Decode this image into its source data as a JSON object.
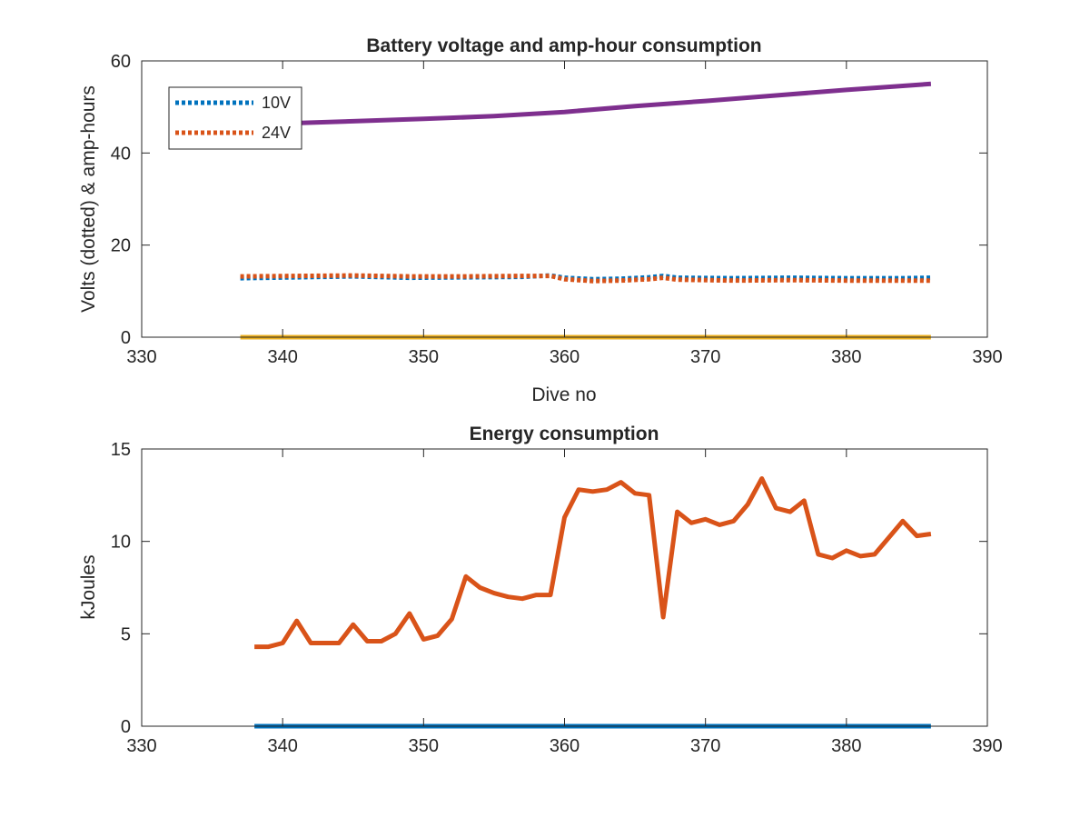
{
  "chart_data": [
    {
      "type": "line",
      "title": "Battery voltage and amp-hour consumption",
      "xlabel": "Dive no",
      "ylabel": "Volts (dotted) & amp-hours",
      "xlim": [
        330,
        390
      ],
      "ylim": [
        0,
        60
      ],
      "xticks": [
        "330",
        "340",
        "350",
        "360",
        "370",
        "380",
        "390"
      ],
      "yticks": [
        "0",
        "20",
        "40",
        "60"
      ],
      "legend_position": "top-left",
      "grid": false,
      "series": [
        {
          "name": "10V",
          "style": "dotted",
          "color": "#0072BD",
          "x": [
            337,
            341,
            345,
            349,
            353,
            357,
            359,
            360,
            362,
            364,
            366,
            367,
            368,
            372,
            376,
            380,
            384,
            386
          ],
          "y": [
            12.8,
            13.0,
            13.2,
            12.9,
            13.0,
            13.1,
            13.4,
            12.9,
            12.6,
            12.7,
            13.0,
            13.3,
            12.9,
            12.8,
            12.9,
            12.8,
            12.8,
            12.9
          ]
        },
        {
          "name": "24V",
          "style": "dotted",
          "color": "#D95319",
          "x": [
            337,
            341,
            345,
            349,
            353,
            357,
            359,
            360,
            362,
            364,
            366,
            367,
            368,
            372,
            376,
            380,
            384,
            386
          ],
          "y": [
            13.2,
            13.3,
            13.4,
            13.2,
            13.2,
            13.3,
            13.3,
            12.6,
            12.2,
            12.3,
            12.6,
            12.9,
            12.5,
            12.3,
            12.4,
            12.3,
            12.3,
            12.3
          ]
        },
        {
          "style": "solid",
          "color": "#EDB120",
          "x": [
            337,
            386
          ],
          "y": [
            0,
            0
          ]
        },
        {
          "style": "solid",
          "color": "#7E2F8E",
          "x": [
            337,
            340,
            345,
            350,
            355,
            360,
            365,
            370,
            375,
            380,
            386
          ],
          "y": [
            46.0,
            46.4,
            46.9,
            47.4,
            48.0,
            48.9,
            50.2,
            51.3,
            52.5,
            53.7,
            55.0
          ]
        }
      ]
    },
    {
      "type": "line",
      "title": "Energy consumption",
      "xlabel": "",
      "ylabel": "kJoules",
      "xlim": [
        330,
        390
      ],
      "ylim": [
        0,
        15
      ],
      "xticks": [
        "330",
        "340",
        "350",
        "360",
        "370",
        "380",
        "390"
      ],
      "yticks": [
        "0",
        "5",
        "10",
        "15"
      ],
      "grid": false,
      "series": [
        {
          "style": "solid",
          "color": "#D95319",
          "x": [
            338,
            339,
            340,
            341,
            342,
            343,
            344,
            345,
            346,
            347,
            348,
            349,
            350,
            351,
            352,
            353,
            354,
            355,
            356,
            357,
            358,
            359,
            360,
            361,
            362,
            363,
            364,
            365,
            366,
            367,
            368,
            369,
            370,
            371,
            372,
            373,
            374,
            375,
            376,
            377,
            378,
            379,
            380,
            381,
            382,
            383,
            384,
            385,
            386
          ],
          "y": [
            4.3,
            4.3,
            4.5,
            5.7,
            4.5,
            4.5,
            4.5,
            5.5,
            4.6,
            4.6,
            5.0,
            6.1,
            4.7,
            4.9,
            5.8,
            8.1,
            7.5,
            7.2,
            7.0,
            6.9,
            7.1,
            7.1,
            11.3,
            12.8,
            12.7,
            12.8,
            13.2,
            12.6,
            12.5,
            5.9,
            11.6,
            11.0,
            11.2,
            10.9,
            11.1,
            12.0,
            13.4,
            11.8,
            11.6,
            12.2,
            9.3,
            9.1,
            9.5,
            9.2,
            9.3,
            10.2,
            11.1,
            10.3,
            10.4
          ]
        },
        {
          "style": "solid",
          "color": "#0072BD",
          "x": [
            338,
            386
          ],
          "y": [
            0,
            0
          ]
        }
      ]
    }
  ]
}
